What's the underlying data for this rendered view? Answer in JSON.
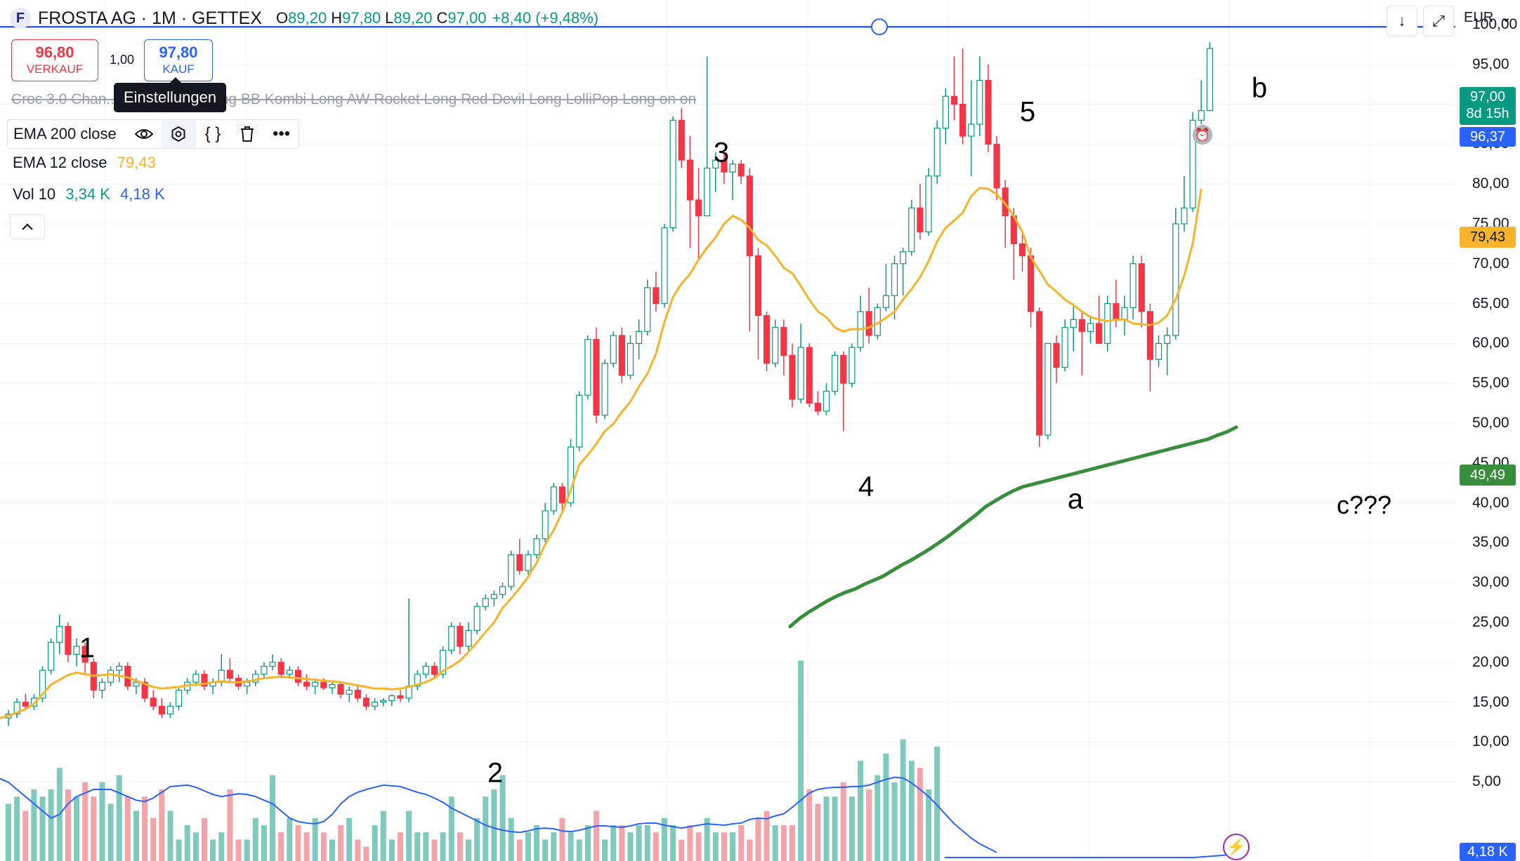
{
  "header": {
    "logo_letter": "F",
    "title": "FROSTA AG · 1M · GETTEX",
    "open_label": "O",
    "open_value": "89,20",
    "high_label": "H",
    "high_value": "97,80",
    "low_label": "L",
    "low_value": "89,20",
    "close_label": "C",
    "close_value": "97,00",
    "change": "+8,40 (+9,48%)"
  },
  "trade": {
    "sell_price": "96,80",
    "sell_label": "VERKAUF",
    "quantity": "1,00",
    "buy_price": "97,80",
    "buy_label": "KAUF"
  },
  "tooltip": "Einstellungen",
  "strategy_text": "Croc 3.0 Chan... Grabberlein Long BB Kombi Long AW Rocket Long Red Devil Long LolliPop Long on on",
  "indicators": {
    "ema200_label": "EMA 200 close",
    "ema12_label": "EMA 12 close",
    "ema12_value": "79,43",
    "vol_label": "Vol 10",
    "vol_value1": "3,34 K",
    "vol_value2": "4,18 K"
  },
  "toolbar": {
    "download_icon": "↓",
    "expand_icon": "⤢",
    "currency": "EUR",
    "currency_arrow": "⌄"
  },
  "price_tags": {
    "last": "97,00",
    "countdown": "8d 15h",
    "line": "96,37",
    "ema12": "79,43",
    "ema200": "49,49",
    "volume": "4,18 K"
  },
  "waves": {
    "w1": "1",
    "w2": "2",
    "w3": "3",
    "w4": "4",
    "w5": "5",
    "wa": "a",
    "wb": "b",
    "wc": "c???"
  },
  "colors": {
    "up": "#089981",
    "down": "#f23645",
    "ema12": "#f7b32b",
    "ema200": "#388e3c",
    "vol_up": "#7fc9bd",
    "vol_down": "#f4a4a8",
    "vol_ma": "#2962ff",
    "hline": "#2962ff"
  },
  "chart_data": {
    "type": "candlestick",
    "y_axis_ticks": [
      "5,00",
      "10,00",
      "15,00",
      "20,00",
      "25,00",
      "30,00",
      "35,00",
      "40,00",
      "45,00",
      "50,00",
      "55,00",
      "60,00",
      "65,00",
      "70,00",
      "75,00",
      "80,00",
      "85,00",
      "90,00",
      "95,00",
      "100,00"
    ],
    "ylim": [
      0,
      100
    ],
    "horizontal_line": 96.37,
    "candles": [
      [
        13.0,
        14.0,
        12.0,
        13.5
      ],
      [
        13.5,
        15.5,
        13.0,
        15.0
      ],
      [
        15.0,
        16.0,
        14.0,
        14.5
      ],
      [
        14.5,
        16.0,
        14.0,
        15.5
      ],
      [
        15.5,
        19.5,
        15.0,
        19.0
      ],
      [
        19.0,
        23.0,
        18.5,
        22.5
      ],
      [
        22.5,
        26.0,
        21.0,
        24.5
      ],
      [
        24.5,
        25.0,
        20.0,
        21.0
      ],
      [
        21.0,
        23.0,
        19.5,
        22.0
      ],
      [
        22.0,
        22.5,
        18.5,
        20.0
      ],
      [
        20.0,
        20.5,
        15.5,
        16.5
      ],
      [
        16.5,
        18.0,
        15.5,
        17.5
      ],
      [
        17.5,
        19.5,
        17.0,
        19.0
      ],
      [
        19.0,
        20.0,
        17.5,
        19.5
      ],
      [
        19.5,
        20.0,
        16.5,
        17.0
      ],
      [
        17.0,
        18.0,
        16.0,
        17.5
      ],
      [
        17.5,
        18.0,
        15.0,
        15.5
      ],
      [
        15.5,
        16.5,
        14.0,
        14.5
      ],
      [
        14.5,
        15.5,
        13.0,
        13.5
      ],
      [
        13.5,
        15.0,
        13.0,
        14.5
      ],
      [
        14.5,
        17.0,
        14.0,
        16.5
      ],
      [
        16.5,
        18.0,
        16.0,
        17.5
      ],
      [
        17.5,
        19.0,
        17.0,
        18.5
      ],
      [
        18.5,
        19.0,
        16.5,
        17.0
      ],
      [
        17.0,
        18.0,
        16.0,
        17.5
      ],
      [
        17.5,
        21.0,
        17.0,
        19.0
      ],
      [
        19.0,
        20.5,
        17.5,
        18.0
      ],
      [
        18.0,
        18.5,
        16.5,
        17.0
      ],
      [
        17.0,
        18.0,
        16.0,
        17.5
      ],
      [
        17.5,
        19.0,
        17.0,
        18.5
      ],
      [
        18.5,
        20.0,
        18.0,
        19.5
      ],
      [
        19.5,
        21.0,
        19.0,
        20.0
      ],
      [
        20.0,
        20.5,
        18.0,
        18.5
      ],
      [
        18.5,
        19.5,
        18.0,
        19.0
      ],
      [
        19.0,
        19.5,
        17.0,
        17.5
      ],
      [
        17.5,
        18.5,
        16.5,
        17.0
      ],
      [
        17.0,
        18.0,
        16.0,
        17.5
      ],
      [
        17.5,
        18.0,
        16.5,
        16.8
      ],
      [
        16.8,
        17.5,
        16.0,
        17.2
      ],
      [
        17.2,
        17.5,
        15.5,
        16.0
      ],
      [
        16.0,
        17.0,
        15.0,
        16.5
      ],
      [
        16.5,
        17.0,
        15.0,
        15.5
      ],
      [
        15.5,
        16.0,
        14.0,
        14.5
      ],
      [
        14.5,
        15.5,
        14.0,
        15.0
      ],
      [
        15.0,
        15.5,
        14.5,
        15.2
      ],
      [
        15.2,
        16.0,
        14.5,
        15.8
      ],
      [
        15.8,
        16.5,
        15.0,
        15.5
      ],
      [
        15.5,
        28.0,
        15.0,
        17.0
      ],
      [
        17.0,
        19.0,
        16.5,
        18.5
      ],
      [
        18.5,
        20.0,
        18.0,
        19.5
      ],
      [
        19.5,
        20.0,
        18.0,
        18.5
      ],
      [
        18.5,
        22.0,
        18.0,
        21.5
      ],
      [
        21.5,
        25.0,
        21.0,
        24.5
      ],
      [
        24.5,
        25.0,
        21.0,
        22.0
      ],
      [
        22.0,
        25.0,
        21.5,
        24.0
      ],
      [
        24.0,
        27.5,
        23.5,
        27.0
      ],
      [
        27.0,
        28.5,
        26.5,
        28.0
      ],
      [
        28.0,
        29.0,
        27.0,
        28.5
      ],
      [
        28.5,
        30.0,
        28.0,
        29.5
      ],
      [
        29.5,
        34.0,
        29.0,
        33.5
      ],
      [
        33.5,
        35.5,
        31.0,
        31.5
      ],
      [
        31.5,
        34.0,
        31.0,
        33.5
      ],
      [
        33.5,
        36.0,
        33.0,
        35.5
      ],
      [
        35.5,
        40.0,
        35.0,
        39.0
      ],
      [
        39.0,
        42.5,
        38.5,
        42.0
      ],
      [
        42.0,
        42.5,
        39.0,
        40.0
      ],
      [
        40.0,
        48.0,
        39.5,
        47.0
      ],
      [
        47.0,
        54.0,
        46.5,
        53.5
      ],
      [
        53.5,
        61.0,
        53.0,
        60.5
      ],
      [
        60.5,
        62.0,
        50.0,
        51.0
      ],
      [
        51.0,
        58.0,
        50.5,
        57.5
      ],
      [
        57.5,
        61.5,
        57.0,
        61.0
      ],
      [
        61.0,
        62.0,
        55.0,
        56.0
      ],
      [
        56.0,
        61.0,
        55.5,
        60.0
      ],
      [
        60.0,
        63.0,
        58.0,
        61.5
      ],
      [
        61.5,
        68.0,
        61.0,
        67.0
      ],
      [
        67.0,
        69.0,
        64.0,
        65.0
      ],
      [
        65.0,
        75.0,
        64.5,
        74.5
      ],
      [
        74.5,
        88.5,
        74.0,
        88.0
      ],
      [
        88.0,
        89.5,
        82.0,
        83.0
      ],
      [
        83.0,
        86.0,
        72.0,
        78.0
      ],
      [
        78.0,
        82.0,
        70.5,
        76.0
      ],
      [
        76.0,
        96.0,
        76.0,
        82.0
      ],
      [
        82.0,
        84.0,
        79.0,
        83.0
      ],
      [
        83.0,
        84.0,
        80.0,
        81.5
      ],
      [
        81.5,
        83.0,
        78.0,
        82.5
      ],
      [
        82.5,
        83.0,
        80.0,
        81.0
      ],
      [
        81.0,
        82.0,
        61.5,
        71.0
      ],
      [
        71.0,
        72.0,
        58.0,
        63.5
      ],
      [
        63.5,
        64.0,
        56.5,
        57.5
      ],
      [
        57.5,
        63.0,
        57.0,
        62.0
      ],
      [
        62.0,
        63.0,
        56.0,
        58.5
      ],
      [
        58.5,
        60.0,
        52.0,
        53.0
      ],
      [
        53.0,
        62.5,
        52.5,
        59.5
      ],
      [
        59.5,
        60.0,
        52.0,
        52.5
      ],
      [
        52.5,
        54.0,
        51.0,
        51.5
      ],
      [
        51.5,
        55.0,
        51.0,
        54.0
      ],
      [
        54.0,
        59.0,
        53.5,
        58.5
      ],
      [
        58.5,
        59.0,
        49.0,
        55.0
      ],
      [
        55.0,
        60.0,
        54.5,
        59.5
      ],
      [
        59.5,
        66.0,
        59.0,
        64.0
      ],
      [
        64.0,
        67.0,
        60.0,
        61.0
      ],
      [
        61.0,
        65.0,
        60.5,
        64.5
      ],
      [
        64.5,
        70.0,
        64.0,
        66.0
      ],
      [
        66.0,
        71.0,
        63.0,
        70.0
      ],
      [
        70.0,
        72.0,
        66.0,
        71.5
      ],
      [
        71.5,
        78.0,
        71.0,
        77.0
      ],
      [
        77.0,
        80.0,
        73.0,
        74.0
      ],
      [
        74.0,
        82.0,
        73.5,
        81.0
      ],
      [
        81.0,
        88.0,
        80.0,
        87.0
      ],
      [
        87.0,
        92.0,
        85.0,
        91.0
      ],
      [
        91.0,
        96.0,
        88.0,
        90.0
      ],
      [
        90.0,
        97.0,
        85.0,
        86.0
      ],
      [
        86.0,
        93.0,
        81.0,
        87.5
      ],
      [
        87.5,
        96.0,
        86.0,
        93.0
      ],
      [
        93.0,
        95.0,
        84.0,
        85.0
      ],
      [
        85.0,
        86.0,
        78.0,
        79.5
      ],
      [
        79.5,
        80.5,
        72.0,
        76.0
      ],
      [
        76.0,
        77.0,
        68.0,
        72.5
      ],
      [
        72.5,
        74.0,
        69.0,
        71.0
      ],
      [
        71.0,
        72.0,
        62.0,
        64.0
      ],
      [
        64.0,
        64.5,
        47.0,
        48.5
      ],
      [
        48.5,
        60.0,
        48.0,
        60.0
      ],
      [
        60.0,
        61.0,
        55.0,
        57.0
      ],
      [
        57.0,
        63.0,
        56.5,
        62.0
      ],
      [
        62.0,
        65.0,
        59.0,
        63.0
      ],
      [
        63.0,
        64.0,
        56.0,
        61.5
      ],
      [
        61.5,
        63.5,
        60.0,
        62.5
      ],
      [
        62.5,
        66.0,
        61.0,
        60.0
      ],
      [
        60.0,
        66.0,
        59.0,
        65.0
      ],
      [
        65.0,
        68.0,
        62.0,
        63.0
      ],
      [
        63.0,
        66.0,
        61.0,
        64.5
      ],
      [
        64.5,
        71.0,
        63.0,
        70.0
      ],
      [
        70.0,
        71.0,
        62.0,
        64.0
      ],
      [
        64.0,
        65.0,
        54.0,
        58.0
      ],
      [
        58.0,
        61.0,
        57.0,
        60.0
      ],
      [
        60.0,
        62.0,
        56.0,
        61.0
      ],
      [
        61.0,
        77.0,
        60.5,
        75.0
      ],
      [
        75.0,
        81.0,
        74.0,
        77.0
      ],
      [
        77.0,
        89.0,
        76.5,
        88.0
      ],
      [
        88.0,
        93.0,
        87.5,
        89.2
      ],
      [
        89.2,
        97.8,
        89.2,
        97.0
      ]
    ],
    "ema12": [
      13,
      13.3,
      13.7,
      14.1,
      14.8,
      16,
      17.2,
      17.8,
      18.4,
      18.7,
      18.5,
      18.3,
      18.4,
      18.5,
      18.3,
      18.1,
      17.7,
      17.3,
      16.9,
      16.7,
      16.8,
      16.9,
      17.1,
      17.2,
      17.3,
      17.5,
      17.6,
      17.5,
      17.5,
      17.6,
      17.8,
      18,
      18.1,
      18.2,
      18.1,
      18,
      17.9,
      17.8,
      17.7,
      17.6,
      17.5,
      17.3,
      17.1,
      16.9,
      16.7,
      16.7,
      16.6,
      16.7,
      16.9,
      17.2,
      17.5,
      18,
      18.9,
      19.5,
      20.2,
      21.3,
      22.5,
      23.8,
      25,
      26.8,
      28,
      29.3,
      30.7,
      32.5,
      34.8,
      36.6,
      38.8,
      41.6,
      44.8,
      46,
      47.4,
      49,
      49.9,
      51.4,
      52.7,
      54.6,
      56.2,
      58.7,
      62.7,
      65.8,
      67.5,
      68.7,
      70.5,
      72,
      73.3,
      75,
      76,
      75.5,
      74.5,
      73,
      72.3,
      71,
      69.5,
      68.8,
      67.2,
      65.5,
      64,
      63.3,
      62,
      61.5,
      61.8,
      61.8,
      62,
      62.5,
      63.2,
      64,
      65.5,
      66.8,
      68.3,
      70.3,
      72.8,
      74.5,
      75.4,
      76.4,
      78.5,
      79.5,
      79.4,
      78.7,
      77.5,
      76,
      74,
      70.8,
      69.1,
      67.4,
      66.5,
      65.5,
      64.8,
      64,
      63.3,
      63,
      62.8,
      63,
      63,
      62.5,
      62.4,
      62.3,
      62.6,
      63.5,
      65.5,
      68.5,
      72.5,
      79.43
    ],
    "ema200": [
      24.5,
      25.5,
      26.3,
      27,
      27.7,
      28.3,
      28.8,
      29.2,
      29.8,
      30.3,
      30.8,
      31.5,
      32.2,
      32.8,
      33.5,
      34.2,
      35,
      35.8,
      36.7,
      37.6,
      38.5,
      39.5,
      40.2,
      40.9,
      41.5,
      42,
      42.3,
      42.6,
      42.9,
      43.2,
      43.5,
      43.8,
      44.1,
      44.4,
      44.7,
      45,
      45.3,
      45.6,
      45.9,
      46.2,
      46.5,
      46.8,
      47.1,
      47.4,
      47.7,
      48,
      48.5,
      48.9,
      49.49
    ],
    "volume": [
      8,
      9,
      7,
      10,
      9,
      10,
      13,
      10,
      9,
      11,
      9,
      11,
      8,
      12,
      9,
      7,
      9,
      6,
      10,
      7,
      3,
      5,
      4,
      6,
      3,
      4,
      10,
      3,
      3,
      6,
      5,
      12,
      4,
      6,
      5,
      4,
      6,
      4,
      3,
      5,
      6,
      3,
      2,
      5,
      7,
      3,
      4,
      7,
      4,
      4,
      3,
      4,
      9,
      4,
      3,
      6,
      9,
      10,
      12,
      6,
      3,
      4,
      5,
      3,
      4,
      6,
      4,
      3,
      5,
      7,
      3,
      5,
      5,
      4,
      5,
      5,
      4,
      6,
      5,
      3,
      5,
      4,
      6,
      4,
      4,
      4,
      5,
      3,
      6,
      7,
      5,
      5,
      5,
      28,
      10,
      8,
      9,
      9,
      11,
      9,
      14,
      10,
      12,
      15,
      11,
      17,
      14,
      13,
      10,
      16
    ],
    "volume_ma": [
      12,
      11.5,
      11,
      10,
      9,
      8,
      7,
      6,
      6.5,
      8,
      9,
      9.5,
      10,
      10,
      10,
      9.5,
      9,
      8.5,
      8.3,
      8.8,
      9.6,
      10.4,
      10.5,
      10.6,
      10.3,
      9.8,
      9.3,
      9,
      9.2,
      9.4,
      9.3,
      9,
      8.5,
      8,
      7,
      6,
      5.5,
      5.3,
      5.2,
      5.5,
      6.5,
      8,
      9,
      9.6,
      10,
      10.3,
      10.6,
      10.5,
      10.4,
      10,
      9.6,
      9.3,
      8.8,
      8.2,
      7.4,
      6.8,
      6.2,
      5.6,
      5,
      4.6,
      4.3,
      4.1,
      4,
      4.2,
      4.5,
      4.6,
      4.5,
      4.2,
      4.1,
      4.3,
      4.6,
      4.9,
      4.9,
      4.8,
      4.7,
      4.9,
      5.2,
      5.3,
      5.3,
      5,
      4.8,
      4.6,
      4.8,
      5,
      5.2,
      5.1,
      5,
      5.2,
      5.3,
      5.8,
      6,
      5.9,
      6.3,
      6.6,
      7.5,
      8.5,
      9.5,
      10,
      10.2,
      10.3,
      10.3,
      10.4,
      10.4,
      10.6,
      11,
      11.4,
      11.7,
      11.6,
      10.9,
      10,
      9,
      7.8,
      6.5,
      5.2,
      4.2,
      3.2,
      2.4,
      1.8,
      1.2
    ]
  }
}
